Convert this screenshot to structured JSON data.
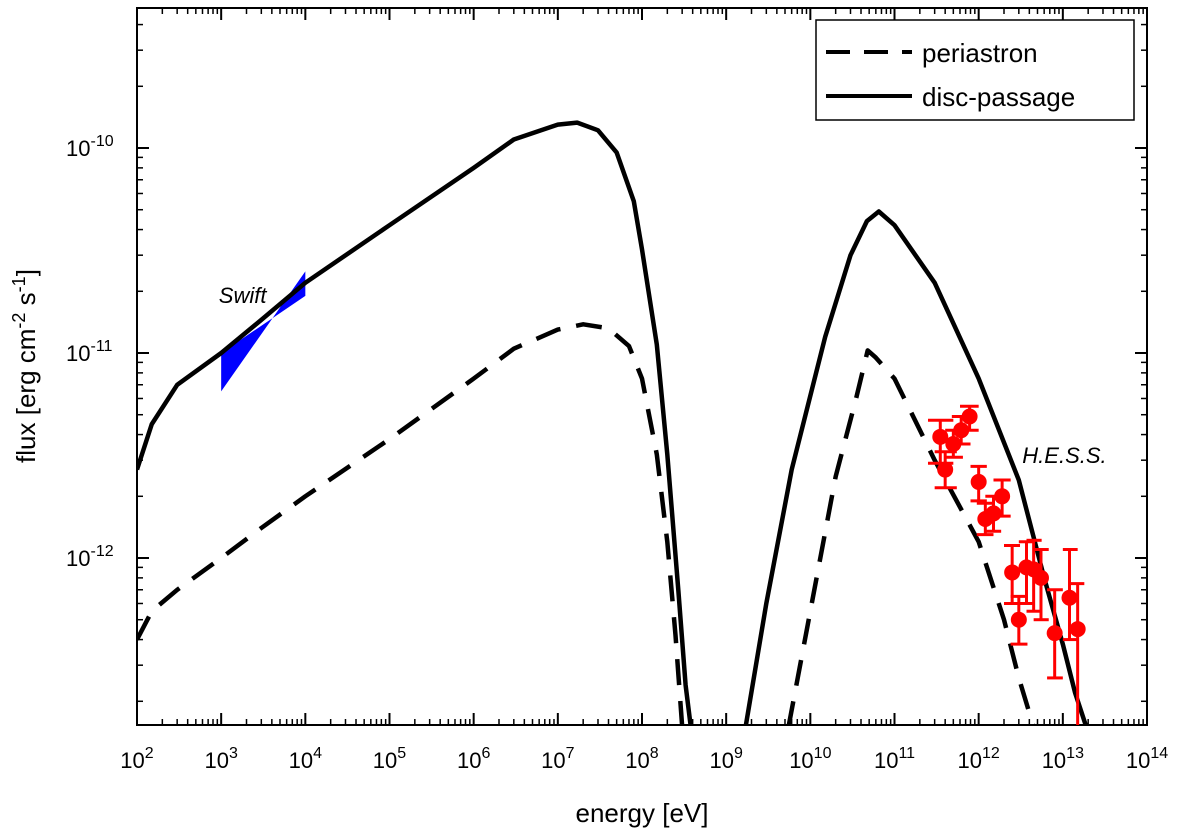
{
  "chart_data": {
    "type": "line",
    "title": "",
    "xlabel": "energy [eV]",
    "ylabel": "flux [erg cm-2 s-1]",
    "ylabel_parts": {
      "main": "flux [erg cm",
      "exp1": "-2",
      "mid": "s",
      "exp2": "-1",
      "end": "]"
    },
    "xscale": "log",
    "yscale": "log",
    "xlim": [
      100,
      100000000000000
    ],
    "ylim": [
      1.5e-13,
      5e-10
    ],
    "grid": false,
    "legend_position": "top-right",
    "x_ticks": [
      {
        "value": 100.0,
        "base": "10",
        "exp": "2"
      },
      {
        "value": 1000.0,
        "base": "10",
        "exp": "3"
      },
      {
        "value": 10000.0,
        "base": "10",
        "exp": "4"
      },
      {
        "value": 100000.0,
        "base": "10",
        "exp": "5"
      },
      {
        "value": 1000000.0,
        "base": "10",
        "exp": "6"
      },
      {
        "value": 10000000.0,
        "base": "10",
        "exp": "7"
      },
      {
        "value": 100000000.0,
        "base": "10",
        "exp": "8"
      },
      {
        "value": 1000000000.0,
        "base": "10",
        "exp": "9"
      },
      {
        "value": 10000000000.0,
        "base": "10",
        "exp": "10"
      },
      {
        "value": 100000000000.0,
        "base": "10",
        "exp": "11"
      },
      {
        "value": 1000000000000.0,
        "base": "10",
        "exp": "12"
      },
      {
        "value": 10000000000000.0,
        "base": "10",
        "exp": "13"
      },
      {
        "value": 100000000000000.0,
        "base": "10",
        "exp": "14"
      }
    ],
    "y_ticks": [
      {
        "value": 1e-12,
        "base": "10",
        "exp": "-12"
      },
      {
        "value": 1e-11,
        "base": "10",
        "exp": "-11"
      },
      {
        "value": 1e-10,
        "base": "10",
        "exp": "-10"
      }
    ],
    "series": [
      {
        "name": "periastron",
        "style": "dashed",
        "color": "#000000",
        "segments": [
          [
            [
              100,
              4e-13
            ],
            [
              150,
              5.5e-13
            ],
            [
              300,
              7e-13
            ],
            [
              1000,
              1e-12
            ],
            [
              3000,
              1.4e-12
            ],
            [
              10000,
              2e-12
            ],
            [
              100000,
              3.8e-12
            ],
            [
              1000000,
              7.5e-12
            ],
            [
              3000000,
              1.05e-11
            ],
            [
              10000000,
              1.3e-11
            ],
            [
              20000000,
              1.38e-11
            ],
            [
              40000000,
              1.32e-11
            ],
            [
              70000000,
              1.08e-11
            ],
            [
              100000000,
              7.5e-12
            ],
            [
              150000000,
              3.2e-12
            ],
            [
              200000000,
              1.2e-12
            ],
            [
              250000000,
              4.2e-13
            ],
            [
              300000000,
              1.5e-13
            ]
          ],
          [
            [
              5500000000,
              1.5e-13
            ],
            [
              10000000000,
              5.5e-13
            ],
            [
              20000000000,
              2.5e-12
            ],
            [
              35000000000,
              6e-12
            ],
            [
              48000000000,
              1.03e-11
            ],
            [
              60000000000,
              9.5e-12
            ],
            [
              100000000000,
              7.5e-12
            ],
            [
              300000000000,
              3e-12
            ],
            [
              1000000000000,
              1.2e-12
            ],
            [
              2000000000000,
              5e-13
            ],
            [
              3000000000000,
              2.6e-13
            ],
            [
              4500000000000,
              1.5e-13
            ]
          ]
        ]
      },
      {
        "name": "disc-passage",
        "style": "solid",
        "color": "#000000",
        "segments": [
          [
            [
              100,
              2.7e-12
            ],
            [
              150,
              4.5e-12
            ],
            [
              300,
              7e-12
            ],
            [
              1000,
              1e-11
            ],
            [
              3000,
              1.45e-11
            ],
            [
              10000,
              2.2e-11
            ],
            [
              100000,
              4.2e-11
            ],
            [
              1000000,
              8e-11
            ],
            [
              3000000,
              1.1e-10
            ],
            [
              10000000,
              1.3e-10
            ],
            [
              17000000,
              1.33e-10
            ],
            [
              30000000,
              1.22e-10
            ],
            [
              50000000,
              9.5e-11
            ],
            [
              80000000,
              5.5e-11
            ],
            [
              100000000,
              3.2e-11
            ],
            [
              150000000,
              1.1e-11
            ],
            [
              200000000,
              3.2e-12
            ],
            [
              270000000,
              7e-13
            ],
            [
              330000000,
              2.4e-13
            ],
            [
              380000000,
              1.5e-13
            ]
          ],
          [
            [
              1700000000,
              1.5e-13
            ],
            [
              3000000000,
              6e-13
            ],
            [
              6000000000,
              2.7e-12
            ],
            [
              15000000000,
              1.2e-11
            ],
            [
              30000000000,
              3e-11
            ],
            [
              47000000000,
              4.4e-11
            ],
            [
              65000000000,
              4.9e-11
            ],
            [
              100000000000,
              4.2e-11
            ],
            [
              300000000000,
              2.2e-11
            ],
            [
              1000000000000,
              7.5e-12
            ],
            [
              3000000000000,
              2.4e-12
            ],
            [
              6000000000000,
              8e-13
            ],
            [
              10000000000000,
              3.8e-13
            ],
            [
              14000000000000,
              2.2e-13
            ],
            [
              19000000000000,
              1.5e-13
            ]
          ]
        ]
      }
    ],
    "swift_band": {
      "label": "Swift",
      "color": "#0000ff",
      "lower": [
        [
          1000,
          6.5e-12
        ],
        [
          10000,
          1.9e-11
        ]
      ],
      "upper": [
        [
          1000,
          1e-11
        ],
        [
          10000,
          2.5e-11
        ]
      ]
    },
    "hess_points": {
      "label": "H.E.S.S.",
      "color": "#ff0000",
      "points": [
        {
          "x": 350000000000,
          "y": 3.9e-12,
          "ylo": 2.9e-12,
          "yhi": 4.7e-12,
          "xlo": 250000000000,
          "xhi": 500000000000
        },
        {
          "x": 400000000000,
          "y": 2.7e-12,
          "ylo": 2.2e-12,
          "yhi": 3.3e-12,
          "xlo": 300000000000,
          "xhi": 550000000000
        },
        {
          "x": 500000000000,
          "y": 3.6e-12,
          "ylo": 3.1e-12,
          "yhi": 4.2e-12,
          "xlo": 400000000000,
          "xhi": 650000000000
        },
        {
          "x": 620000000000,
          "y": 4.2e-12,
          "ylo": 3.6e-12,
          "yhi": 4.9e-12,
          "xlo": 480000000000,
          "xhi": 800000000000
        },
        {
          "x": 780000000000,
          "y": 4.9e-12,
          "ylo": 4.2e-12,
          "yhi": 5.5e-12,
          "xlo": 600000000000,
          "xhi": 1000000000000
        },
        {
          "x": 1000000000000,
          "y": 2.35e-12,
          "ylo": 1.9e-12,
          "yhi": 2.8e-12,
          "xlo": 800000000000,
          "xhi": 1250000000000
        },
        {
          "x": 1200000000000,
          "y": 1.55e-12,
          "ylo": 1.3e-12,
          "yhi": 1.85e-12,
          "xlo": 950000000000,
          "xhi": 1500000000000
        },
        {
          "x": 1500000000000,
          "y": 1.65e-12,
          "ylo": 1.35e-12,
          "yhi": 2e-12,
          "xlo": 1200000000000,
          "xhi": 1850000000000
        },
        {
          "x": 1900000000000,
          "y": 2e-12,
          "ylo": 1.6e-12,
          "yhi": 2.4e-12,
          "xlo": 1500000000000,
          "xhi": 2400000000000
        },
        {
          "x": 2500000000000,
          "y": 8.5e-13,
          "ylo": 6e-13,
          "yhi": 1.15e-12,
          "xlo": 2000000000000,
          "xhi": 3100000000000
        },
        {
          "x": 3000000000000,
          "y": 5e-13,
          "ylo": 3.8e-13,
          "yhi": 6.5e-13,
          "xlo": 2400000000000,
          "xhi": 3800000000000
        },
        {
          "x": 3700000000000,
          "y": 9e-13,
          "ylo": 6e-13,
          "yhi": 1.2e-12,
          "xlo": 3000000000000,
          "xhi": 4600000000000
        },
        {
          "x": 4500000000000,
          "y": 8.8e-13,
          "ylo": 5.5e-13,
          "yhi": 1.22e-12,
          "xlo": 3700000000000,
          "xhi": 5600000000000
        },
        {
          "x": 5500000000000,
          "y": 8e-13,
          "ylo": 5e-13,
          "yhi": 1.1e-12,
          "xlo": 4500000000000,
          "xhi": 6800000000000
        },
        {
          "x": 8000000000000,
          "y": 4.3e-13,
          "ylo": 2.6e-13,
          "yhi": 7e-13,
          "xlo": 6500000000000,
          "xhi": 10000000000000
        },
        {
          "x": 12000000000000,
          "y": 6.4e-13,
          "ylo": 4e-13,
          "yhi": 1.1e-12,
          "xlo": 10000000000000,
          "xhi": 15000000000000
        },
        {
          "x": 15000000000000,
          "y": 4.5e-13,
          "ylo": 1.5e-13,
          "yhi": 7.5e-13,
          "xlo": 12000000000000,
          "xhi": 18000000000000
        }
      ]
    },
    "annotations": [
      {
        "text": "Swift",
        "x": 1800,
        "y": 1.75e-11
      },
      {
        "text": "H.E.S.S.",
        "x": 3300000000000,
        "y": 2.9e-12
      }
    ]
  }
}
